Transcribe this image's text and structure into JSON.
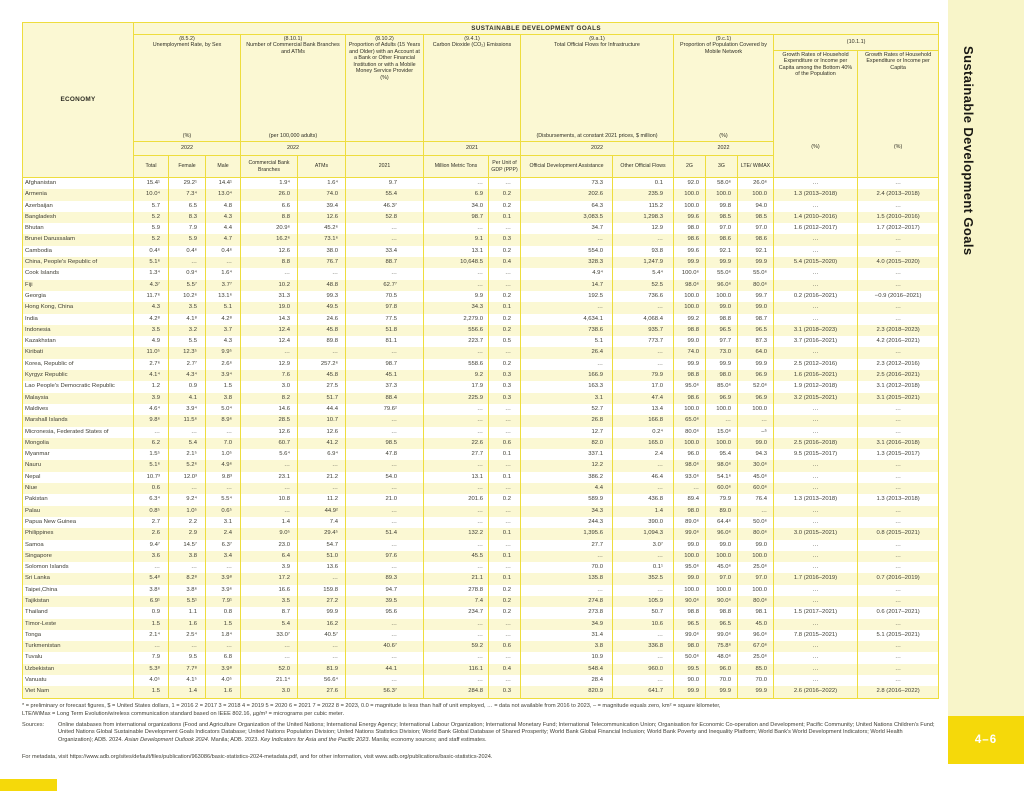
{
  "sidebar": {
    "title": "Sustainable Development Goals",
    "page_tab": "4–6"
  },
  "table": {
    "title": "SUSTAINABLE DEVELOPMENT GOALS",
    "economy_header": "ECONOMY",
    "groups": {
      "unemployment": {
        "code": "(8.5.2)",
        "name": "Unemployment Rate, by Sex",
        "unit": "(%)",
        "year": "2022",
        "subs": [
          "Total",
          "Female",
          "Male"
        ]
      },
      "banks": {
        "code": "(8.10.1)",
        "name": "Number of Commercial Bank Branches and ATMs",
        "unit": "(per 100,000 adults)",
        "year": "2022",
        "subs": [
          "Commercial Bank Branches",
          "ATMs"
        ]
      },
      "account": {
        "code": "(8.10.2)",
        "name": "Proportion of Adults (15 Years and Older) with an Account at a Bank or Other Financial Institution or with a Mobile Money Service Provider",
        "unit": "(%)",
        "year": "",
        "subs": [
          "2021"
        ]
      },
      "co2": {
        "code": "(9.4.1)",
        "name": "Carbon Dioxide (CO₂) Emissions",
        "unit": "",
        "year": "2021",
        "subs": [
          "Million Metric Tons",
          "Per Unit of GDP (PPP)"
        ]
      },
      "flows": {
        "code": "(9.a.1)",
        "name": "Total Official Flows for Infrastructure",
        "unit": "(Disbursements, at constant 2021 prices, $ million)",
        "year": "2022",
        "subs": [
          "Official Development Assistance",
          "Other Official Flows"
        ]
      },
      "mobile": {
        "code": "(9.c.1)",
        "name": "Proportion of Population Covered by Mobile Network",
        "unit": "(%)",
        "year": "2022",
        "subs": [
          "2G",
          "3G",
          "LTE/ WiMAX"
        ]
      },
      "growth": {
        "code": "(10.1.1)",
        "col1": {
          "name": "Growth Rates of Household Expenditure or Income per Capita among the Bottom 40% of the Population",
          "unit": "(%)"
        },
        "col2": {
          "name": "Growth Rates of Household Expenditure or Income per Capita",
          "unit": "(%)"
        }
      }
    },
    "rows": [
      [
        "Afghanistan",
        "15.4¹",
        "29.2¹",
        "14.4¹",
        "1.9⁴",
        "1.6⁴",
        "9.7",
        "…",
        "…",
        "73.3",
        "0.1",
        "92.0",
        "58.0⁶",
        "26.0⁶",
        "…",
        "…"
      ],
      [
        "Armenia",
        "10.0⁴",
        "7.3⁴",
        "13.0⁴",
        "26.0",
        "74.0",
        "55.4",
        "6.9",
        "0.2",
        "202.6",
        "235.9",
        "100.0",
        "100.0",
        "100.0",
        "1.3 (2013–2018)",
        "2.4 (2013–2018)"
      ],
      [
        "Azerbaijan",
        "5.7",
        "6.5",
        "4.8",
        "6.6",
        "39.4",
        "46.3⁷",
        "34.0",
        "0.2",
        "64.3",
        "115.2",
        "100.0",
        "99.8",
        "94.0",
        "…",
        "…"
      ],
      [
        "Bangladesh",
        "5.2",
        "8.3",
        "4.3",
        "8.8",
        "12.6",
        "52.8",
        "98.7",
        "0.1",
        "3,083.5",
        "1,298.3",
        "99.6",
        "98.5",
        "98.5",
        "1.4 (2010–2016)",
        "1.5 (2010–2016)"
      ],
      [
        "Bhutan",
        "5.9",
        "7.9",
        "4.4",
        "20.9⁶",
        "45.2⁶",
        "…",
        "…",
        "…",
        "34.7",
        "12.9",
        "98.0",
        "97.0",
        "97.0",
        "1.6 (2012–2017)",
        "1.7 (2012–2017)"
      ],
      [
        "Brunei Darussalam",
        "5.2",
        "5.9",
        "4.7",
        "16.2⁶",
        "73.1⁶",
        "…",
        "9.1",
        "0.3",
        "…",
        "…",
        "98.6",
        "98.6",
        "98.6",
        "…",
        "…"
      ],
      [
        "Cambodia",
        "0.4⁶",
        "0.4⁶",
        "0.4⁶",
        "12.6",
        "38.0",
        "33.4",
        "13.1",
        "0.2",
        "554.0",
        "93.8",
        "99.6",
        "92.1",
        "92.1",
        "…",
        "…"
      ],
      [
        "China, People's Republic of",
        "5.1⁶",
        "…",
        "…",
        "8.8",
        "76.7",
        "88.7",
        "10,648.5",
        "0.4",
        "328.3",
        "1,247.9",
        "99.9",
        "99.9",
        "99.9",
        "5.4 (2015–2020)",
        "4.0 (2015–2020)"
      ],
      [
        "Cook Islands",
        "1.3⁴",
        "0.9⁴",
        "1.6⁴",
        "…",
        "…",
        "…",
        "…",
        "…",
        "4.9⁴",
        "5.4⁴",
        "100.0⁶",
        "55.0⁶",
        "55.0⁶",
        "…",
        "…"
      ],
      [
        "Fiji",
        "4.3⁷",
        "5.5⁷",
        "3.7⁷",
        "10.2",
        "48.8",
        "62.7⁷",
        "…",
        "…",
        "14.7",
        "52.5",
        "98.0⁶",
        "96.0⁶",
        "80.0⁶",
        "…",
        "…"
      ],
      [
        "Georgia",
        "11.7⁶",
        "10.2⁶",
        "13.1⁶",
        "31.3",
        "99.3",
        "70.5",
        "9.9",
        "0.2",
        "192.5",
        "736.6",
        "100.0",
        "100.0",
        "99.7",
        "0.2 (2016–2021)",
        "−0.9 (2016–2021)"
      ],
      [
        "Hong Kong, China",
        "4.3",
        "3.5",
        "5.1",
        "19.0",
        "49.5",
        "97.8",
        "34.3",
        "0.1",
        "…",
        "…",
        "100.0",
        "99.0",
        "99.0",
        "…",
        "…"
      ],
      [
        "India",
        "4.2⁸",
        "4.1⁸",
        "4.2⁸",
        "14.3",
        "24.6",
        "77.5",
        "2,279.0",
        "0.2",
        "4,634.1",
        "4,068.4",
        "99.2",
        "98.8",
        "98.7",
        "…",
        "…"
      ],
      [
        "Indonesia",
        "3.5",
        "3.2",
        "3.7",
        "12.4",
        "45.8",
        "51.8",
        "556.6",
        "0.2",
        "738.6",
        "935.7",
        "98.8",
        "96.5",
        "96.5",
        "3.1 (2018–2023)",
        "2.3 (2018–2023)"
      ],
      [
        "Kazakhstan",
        "4.9",
        "5.5",
        "4.3",
        "12.4",
        "89.8",
        "81.1",
        "223.7",
        "0.5",
        "5.1",
        "773.7",
        "99.0",
        "97.7",
        "87.3",
        "3.7 (2016–2021)",
        "4.2 (2016–2021)"
      ],
      [
        "Kiribati",
        "11.0⁵",
        "12.3⁵",
        "9.9⁵",
        "…",
        "…",
        "…",
        "…",
        "…",
        "26.4",
        "…",
        "74.0",
        "73.0",
        "64.0",
        "…",
        "…"
      ],
      [
        "Korea, Republic of",
        "2.7⁶",
        "2.7⁷",
        "2.6⁶",
        "12.9",
        "257.2⁶",
        "98.7",
        "558.6",
        "0.2",
        "…",
        "…",
        "99.9",
        "99.9",
        "99.9",
        "2.5 (2012–2016)",
        "2.3 (2012–2016)"
      ],
      [
        "Kyrgyz Republic",
        "4.1⁴",
        "4.3⁴",
        "3.9⁴",
        "7.6",
        "45.8",
        "45.1",
        "9.2",
        "0.3",
        "166.9",
        "79.9",
        "98.8",
        "98.0",
        "96.9",
        "1.6 (2016–2021)",
        "2.5 (2016–2021)"
      ],
      [
        "Lao People's Democratic Republic",
        "1.2",
        "0.9",
        "1.5",
        "3.0",
        "27.5",
        "37.3",
        "17.9",
        "0.3",
        "163.3",
        "17.0",
        "95.0⁶",
        "85.0⁶",
        "52.0⁶",
        "1.9 (2012–2018)",
        "3.1 (2012–2018)"
      ],
      [
        "Malaysia",
        "3.9",
        "4.1",
        "3.8",
        "8.2",
        "51.7",
        "88.4",
        "225.9",
        "0.3",
        "3.1",
        "47.4",
        "98.6",
        "96.9",
        "96.9",
        "3.2 (2015–2021)",
        "3.1 (2015–2021)"
      ],
      [
        "Maldives",
        "4.6⁴",
        "3.9⁴",
        "5.0⁴",
        "14.6",
        "44.4",
        "79.6²",
        "…",
        "…",
        "52.7",
        "13.4",
        "100.0",
        "100.0",
        "100.0",
        "…",
        "…"
      ],
      [
        "Marshall Islands",
        "9.8⁶",
        "11.5⁶",
        "8.9⁶",
        "28.5",
        "10.7",
        "…",
        "…",
        "…",
        "26.8",
        "166.8",
        "65.0⁶",
        "…",
        "…",
        "…",
        "…"
      ],
      [
        "Micronesia, Federated States of",
        "…",
        "…",
        "…",
        "12.6",
        "12.6",
        "…",
        "…",
        "…",
        "12.7",
        "0.2⁴",
        "80.0⁶",
        "15.0⁶",
        "–⁵",
        "…",
        "…"
      ],
      [
        "Mongolia",
        "6.2",
        "5.4",
        "7.0",
        "60.7",
        "41.2",
        "98.5",
        "22.6",
        "0.6",
        "82.0",
        "165.0",
        "100.0",
        "100.0",
        "99.0",
        "2.5 (2016–2018)",
        "3.1 (2016–2018)"
      ],
      [
        "Myanmar",
        "1.5⁵",
        "2.1⁵",
        "1.0⁵",
        "5.6⁴",
        "6.9⁴",
        "47.8",
        "27.7",
        "0.1",
        "337.1",
        "2.4",
        "96.0",
        "95.4",
        "94.3",
        "9.5 (2015–2017)",
        "1.3 (2015–2017)"
      ],
      [
        "Nauru",
        "5.1⁶",
        "5.2⁶",
        "4.9⁶",
        "…",
        "…",
        "…",
        "…",
        "…",
        "12.2",
        "…",
        "98.0⁶",
        "98.0⁶",
        "30.0⁶",
        "…",
        "…"
      ],
      [
        "Nepal",
        "10.7³",
        "12.0³",
        "9.8³",
        "23.1",
        "21.2",
        "54.0",
        "13.1",
        "0.1",
        "386.2",
        "46.4",
        "93.0⁶",
        "54.1⁶",
        "45.0⁶",
        "…",
        "…"
      ],
      [
        "Niue",
        "0.6",
        "…",
        "…",
        "…",
        "…",
        "…",
        "…",
        "…",
        "4.4",
        "…",
        "…",
        "60.0⁶",
        "60.0⁶",
        "…",
        "…"
      ],
      [
        "Pakistan",
        "6.3⁴",
        "9.2⁴",
        "5.5⁴",
        "10.8",
        "11.2",
        "21.0",
        "201.6",
        "0.2",
        "589.9",
        "436.8",
        "89.4",
        "79.9",
        "76.4",
        "1.3 (2013–2018)",
        "1.3 (2013–2018)"
      ],
      [
        "Palau",
        "0.8⁵",
        "1.0⁵",
        "0.6⁵",
        "…",
        "44.9²",
        "…",
        "…",
        "…",
        "34.3",
        "1.4",
        "98.0",
        "89.0",
        "…",
        "…",
        "…"
      ],
      [
        "Papua New Guinea",
        "2.7",
        "2.2",
        "3.1",
        "1.4",
        "7.4",
        "…",
        "…",
        "…",
        "244.3",
        "390.0",
        "89.0⁶",
        "64.4⁶",
        "50.0⁶",
        "…",
        "…"
      ],
      [
        "Philippines",
        "2.6",
        "2.9",
        "2.4",
        "9.0⁵",
        "29.4⁵",
        "51.4",
        "132.2",
        "0.1",
        "1,395.6",
        "1,094.3",
        "99.0⁶",
        "96.0⁶",
        "80.0⁶",
        "3.0 (2015–2021)",
        "0.8 (2015–2021)"
      ],
      [
        "Samoa",
        "9.4⁷",
        "14.5⁷",
        "6.3⁷",
        "23.0",
        "54.7",
        "…",
        "…",
        "…",
        "27.7",
        "3.0⁷",
        "99.0",
        "99.0",
        "99.0",
        "…",
        "…"
      ],
      [
        "Singapore",
        "3.6",
        "3.8",
        "3.4",
        "6.4",
        "51.0",
        "97.6",
        "45.5",
        "0.1",
        "…",
        "…",
        "100.0",
        "100.0",
        "100.0",
        "…",
        "…"
      ],
      [
        "Solomon Islands",
        "…",
        "…",
        "…",
        "3.9",
        "13.6",
        "…",
        "…",
        "…",
        "70.0",
        "0.1¹",
        "95.0⁶",
        "45.0⁶",
        "25.0⁶",
        "…",
        "…"
      ],
      [
        "Sri Lanka",
        "5.4⁸",
        "8.2⁸",
        "3.9⁸",
        "17.2",
        "…",
        "89.3",
        "21.1",
        "0.1",
        "135.8",
        "352.5",
        "99.0",
        "97.0",
        "97.0",
        "1.7 (2016–2019)",
        "0.7 (2016–2019)"
      ],
      [
        "Taipei,China",
        "3.8⁶",
        "3.8⁶",
        "3.9⁶",
        "16.6",
        "159.8",
        "94.7",
        "278.8",
        "0.2",
        "…",
        "…",
        "100.0",
        "100.0",
        "100.0",
        "…",
        "…"
      ],
      [
        "Tajikistan",
        "6.9¹",
        "5.5¹",
        "7.9¹",
        "3.5",
        "27.2",
        "39.5",
        "7.4",
        "0.2",
        "274.8",
        "105.9",
        "90.0⁶",
        "90.0⁶",
        "80.0⁶",
        "…",
        "…"
      ],
      [
        "Thailand",
        "0.9",
        "1.1",
        "0.8",
        "8.7",
        "99.9",
        "95.6",
        "234.7",
        "0.2",
        "273.8",
        "50.7",
        "98.8",
        "98.8",
        "98.1",
        "1.5 (2017–2021)",
        "0.6 (2017–2021)"
      ],
      [
        "Timor-Leste",
        "1.5",
        "1.6",
        "1.5",
        "5.4",
        "16.2",
        "…",
        "…",
        "…",
        "34.9",
        "10.6",
        "96.5",
        "96.5",
        "45.0",
        "…",
        "…"
      ],
      [
        "Tonga",
        "2.1⁴",
        "2.5⁴",
        "1.8⁴",
        "33.0⁷",
        "40.5⁷",
        "…",
        "…",
        "…",
        "31.4",
        "…",
        "99.0⁶",
        "99.0⁶",
        "96.0⁶",
        "7.8 (2015–2021)",
        "5.1 (2015–2021)"
      ],
      [
        "Turkmenistan",
        "…",
        "…",
        "…",
        "…",
        "…",
        "40.6⁷",
        "59.2",
        "0.6",
        "3.8",
        "336.8",
        "98.0",
        "75.8⁶",
        "67.0⁶",
        "…",
        "…"
      ],
      [
        "Tuvalu",
        "7.9",
        "9.5",
        "6.8",
        "…",
        "…",
        "…",
        "…",
        "…",
        "10.9",
        "…",
        "50.0⁶",
        "48.0⁶",
        "25.0⁶",
        "…",
        "…"
      ],
      [
        "Uzbekistan",
        "5.3⁸",
        "7.7⁸",
        "3.9⁸",
        "52.0",
        "81.9",
        "44.1",
        "116.1",
        "0.4",
        "548.4",
        "960.0",
        "99.5",
        "96.0",
        "85.0",
        "…",
        "…"
      ],
      [
        "Vanuatu",
        "4.0⁵",
        "4.1⁵",
        "4.0⁵",
        "21.1⁴",
        "56.6⁴",
        "…",
        "…",
        "…",
        "28.4",
        "…",
        "90.0",
        "70.0",
        "70.0",
        "…",
        "…"
      ],
      [
        "Viet Nam",
        "1.5",
        "1.4",
        "1.6",
        "3.0",
        "27.6",
        "56.3⁷",
        "284.8",
        "0.3",
        "820.9",
        "641.7",
        "99.9",
        "99.9",
        "99.9",
        "2.6 (2016–2022)",
        "2.8 (2016–2022)"
      ]
    ]
  },
  "footnotes": {
    "line1": "* = preliminary or forecast figures, $ = United States dollars, 1 = 2016   2 = 2017   3 = 2018   4 = 2019   5 = 2020   6 = 2021   7 = 2022   8 = 2023, 0.0 = magnitude is less than half of unit employed, … = data not available from 2016 to 2023, – = magnitude equals zero, km² = square kilometer,",
    "line2": "LTE/WiMax = Long Term Evolution/wireless communication standard based on IEEE 802.16, µg/m³ = micrograms per cubic meter.",
    "sources_label": "Sources:",
    "sources_segments": [
      {
        "text": "Online databases from international organizations (Food and Agriculture Organization of the United Nations; International Energy Agency; International Labour Organization; International Monetary Fund; International Telecommunication Union; Organisation for Economic Co-operation and Development; Pacific Community; United Nations Children's Fund; United Nations Global Sustainable Development Goals Indicators Database; United Nations Population Division; United Nations Statistics Division; World Bank Global Database of Shared Prosperity; World Bank Global Financial Inclusion; World Bank Poverty and Inequality Platform; World Bank's World Development Indicators; World Health Organization); ADB. 2024. ",
        "italic": false
      },
      {
        "text": "Asian Development Outlook 2024",
        "italic": true
      },
      {
        "text": ". Manila; ADB. 2023. ",
        "italic": false
      },
      {
        "text": "Key Indicators for Asia and the Pacific 2023",
        "italic": true
      },
      {
        "text": ". Manila; economy sources; and staff estimates.",
        "italic": false
      }
    ],
    "metadata_line": "For metadata, visit https://www.adb.org/sites/default/files/publication/963086/basic-statistics-2024-metadata.pdf, and for other information, visit www.adb.org/publications/basic-statistics-2024."
  }
}
